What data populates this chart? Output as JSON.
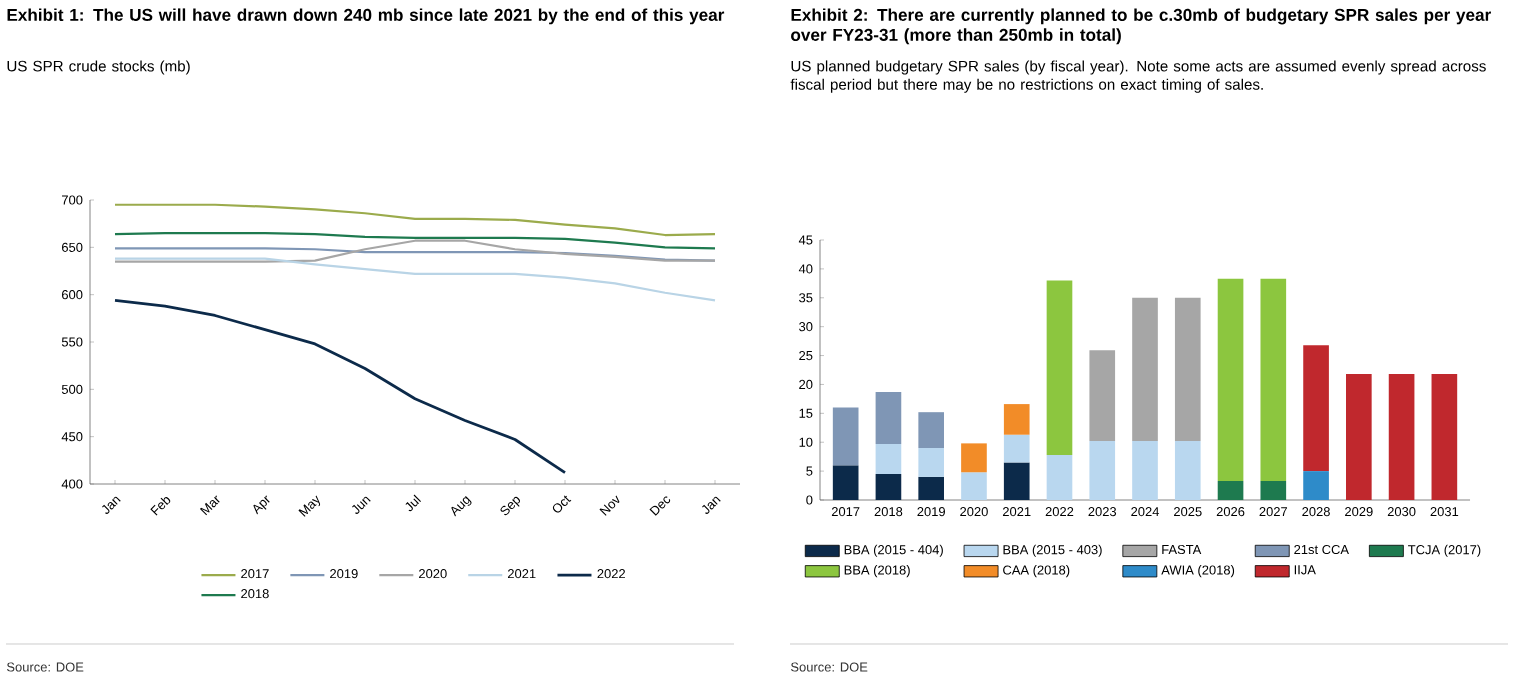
{
  "chart_data": [
    {
      "type": "line",
      "title": "Exhibit 1: The US will have drawn down 240 mb since late 2021 by the end of this year",
      "subtitle": "US SPR crude stocks (mb)",
      "categories": [
        "Jan",
        "Feb",
        "Mar",
        "Apr",
        "May",
        "Jun",
        "Jul",
        "Aug",
        "Sep",
        "Oct",
        "Nov",
        "Dec",
        "Jan"
      ],
      "series": [
        {
          "name": "2017",
          "color": "#9bab4c",
          "values": [
            695,
            695,
            695,
            693,
            690,
            686,
            680,
            680,
            679,
            674,
            670,
            663,
            664
          ]
        },
        {
          "name": "2019",
          "color": "#7f96b5",
          "values": [
            649,
            649,
            649,
            649,
            648,
            645,
            645,
            645,
            645,
            644,
            641,
            637,
            636
          ]
        },
        {
          "name": "2020",
          "color": "#a6a6a6",
          "values": [
            635,
            635,
            635,
            635,
            636,
            648,
            657,
            657,
            648,
            643,
            640,
            636,
            636
          ]
        },
        {
          "name": "2021",
          "color": "#b9d4e6",
          "values": [
            638,
            638,
            638,
            638,
            632,
            627,
            622,
            622,
            622,
            618,
            612,
            602,
            594
          ]
        },
        {
          "name": "2022",
          "color": "#0c2a4a",
          "values": [
            594,
            588,
            578,
            563,
            548,
            522,
            490,
            467,
            447,
            412,
            null,
            null,
            null
          ]
        },
        {
          "name": "2018",
          "color": "#1e7a4f",
          "values": [
            664,
            665,
            665,
            665,
            664,
            661,
            660,
            660,
            660,
            659,
            655,
            650,
            649
          ]
        }
      ],
      "ylim": [
        400,
        700
      ],
      "yticks": [
        400,
        450,
        500,
        550,
        600,
        650,
        700
      ],
      "legend": "bottom",
      "annotations": [
        "Source: DOE"
      ]
    },
    {
      "type": "bar",
      "stacked": true,
      "title": "Exhibit 2: There are currently planned to be c.30mb of budgetary SPR sales per year over FY23-31 (more than 250mb in total)",
      "subtitle": "US planned budgetary SPR sales (by fiscal year). Note some acts are assumed evenly spread across fiscal period but there may be no restrictions on exact timing of sales.",
      "categories": [
        "2017",
        "2018",
        "2019",
        "2020",
        "2021",
        "2022",
        "2023",
        "2024",
        "2025",
        "2026",
        "2027",
        "2028",
        "2029",
        "2030",
        "2031"
      ],
      "series": [
        {
          "name": "BBA (2015 - 404)",
          "color": "#0c2a4a",
          "values": [
            6,
            4.5,
            4,
            null,
            6.5,
            null,
            null,
            null,
            null,
            null,
            null,
            null,
            null,
            null,
            null
          ]
        },
        {
          "name": "BBA (2015 - 403)",
          "color": "#b9d7ef",
          "values": [
            null,
            5.2,
            5,
            4.8,
            4.8,
            7.8,
            10.2,
            10.2,
            10.2,
            null,
            null,
            null,
            null,
            null,
            null
          ]
        },
        {
          "name": "FASTA",
          "color": "#a6a6a6",
          "values": [
            null,
            null,
            null,
            null,
            null,
            null,
            15.7,
            24.8,
            24.8,
            null,
            null,
            null,
            null,
            null,
            null
          ]
        },
        {
          "name": "21st CCA",
          "color": "#7f96b5",
          "values": [
            10,
            9,
            6.2,
            null,
            null,
            null,
            null,
            null,
            null,
            null,
            null,
            null,
            null,
            null,
            null
          ]
        },
        {
          "name": "TCJA (2017)",
          "color": "#1e7a4f",
          "values": [
            null,
            null,
            null,
            null,
            null,
            null,
            null,
            null,
            null,
            3.3,
            3.3,
            null,
            null,
            null,
            null
          ]
        },
        {
          "name": "BBA (2018)",
          "color": "#8cc63f",
          "values": [
            null,
            null,
            null,
            null,
            null,
            30.2,
            null,
            null,
            null,
            35,
            35,
            null,
            null,
            null,
            null
          ]
        },
        {
          "name": "CAA (2018)",
          "color": "#f28c28",
          "values": [
            null,
            null,
            null,
            5,
            5.3,
            null,
            null,
            null,
            null,
            null,
            null,
            null,
            null,
            null,
            null
          ]
        },
        {
          "name": "AWIA (2018)",
          "color": "#2e8bc9",
          "values": [
            null,
            null,
            null,
            null,
            null,
            null,
            null,
            null,
            null,
            null,
            null,
            5,
            null,
            null,
            null
          ]
        },
        {
          "name": "IIJA",
          "color": "#c0282d",
          "values": [
            null,
            null,
            null,
            null,
            null,
            null,
            null,
            null,
            null,
            null,
            null,
            21.8,
            21.8,
            21.8,
            21.8
          ]
        }
      ],
      "ylim": [
        0,
        45
      ],
      "yticks": [
        0,
        5,
        10,
        15,
        20,
        25,
        30,
        35,
        40,
        45
      ],
      "legend": "bottom",
      "annotations": [
        "Source: DOE"
      ]
    }
  ]
}
